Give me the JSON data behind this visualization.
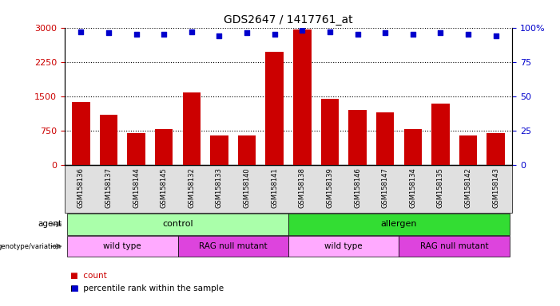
{
  "title": "GDS2647 / 1417761_at",
  "samples": [
    "GSM158136",
    "GSM158137",
    "GSM158144",
    "GSM158145",
    "GSM158132",
    "GSM158133",
    "GSM158140",
    "GSM158141",
    "GSM158138",
    "GSM158139",
    "GSM158146",
    "GSM158147",
    "GSM158134",
    "GSM158135",
    "GSM158142",
    "GSM158143"
  ],
  "counts": [
    1380,
    1100,
    700,
    780,
    1580,
    640,
    640,
    2480,
    2950,
    1450,
    1200,
    1150,
    790,
    1340,
    640,
    700
  ],
  "percentiles": [
    97,
    96,
    95,
    95,
    97,
    94,
    96,
    95,
    98,
    97,
    95,
    96,
    95,
    96,
    95,
    94
  ],
  "ylim_left": [
    0,
    3000
  ],
  "ylim_right": [
    0,
    100
  ],
  "yticks_left": [
    0,
    750,
    1500,
    2250,
    3000
  ],
  "yticks_right": [
    0,
    25,
    50,
    75,
    100
  ],
  "bar_color": "#cc0000",
  "dot_color": "#0000cc",
  "agent_groups": [
    {
      "label": "control",
      "start": 0,
      "end": 8,
      "color": "#aaffaa"
    },
    {
      "label": "allergen",
      "start": 8,
      "end": 16,
      "color": "#33dd33"
    }
  ],
  "genotype_groups": [
    {
      "label": "wild type",
      "start": 0,
      "end": 4,
      "color": "#ffaaff"
    },
    {
      "label": "RAG null mutant",
      "start": 4,
      "end": 8,
      "color": "#dd44dd"
    },
    {
      "label": "wild type",
      "start": 8,
      "end": 12,
      "color": "#ffaaff"
    },
    {
      "label": "RAG null mutant",
      "start": 12,
      "end": 16,
      "color": "#dd44dd"
    }
  ],
  "legend_count_color": "#cc0000",
  "legend_dot_color": "#0000cc",
  "tick_label_color_left": "#cc0000",
  "tick_label_color_right": "#0000cc",
  "xlim": [
    -0.6,
    15.6
  ]
}
